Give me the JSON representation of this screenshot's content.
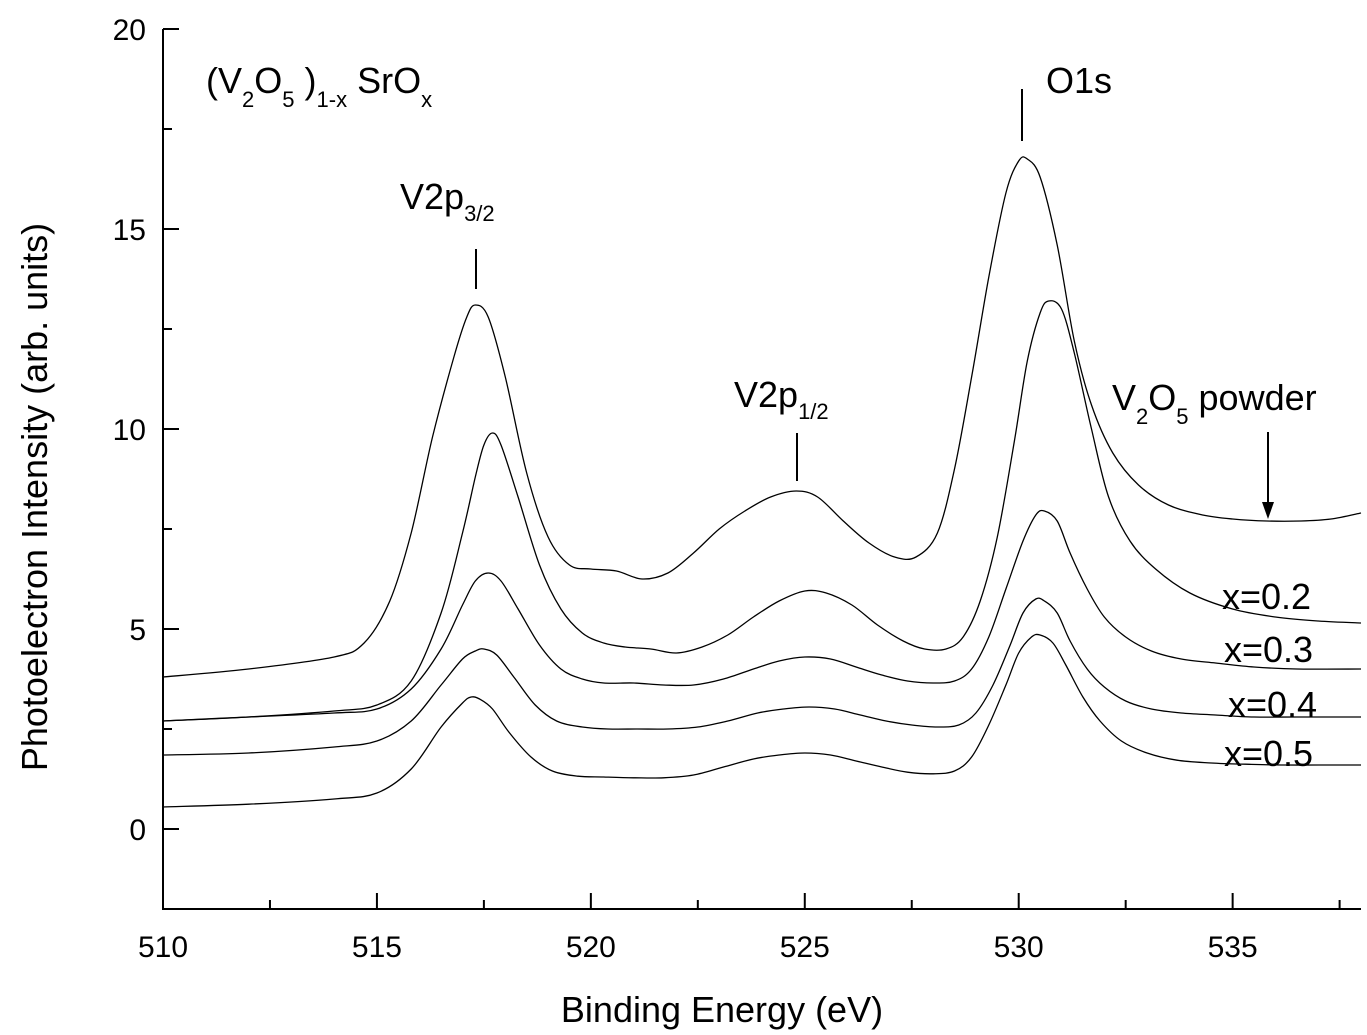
{
  "chart_data": {
    "type": "line",
    "title": "",
    "xlabel": "Binding Energy (eV)",
    "ylabel": "Photoelectron Intensity (arb. units)",
    "xlim": [
      510,
      538
    ],
    "ylim": [
      -2,
      20
    ],
    "x_ticks": [
      510,
      515,
      520,
      525,
      530,
      535
    ],
    "y_ticks": [
      0,
      5,
      10,
      15,
      20
    ],
    "grid": false,
    "series": [
      {
        "name": "V2O5 powder",
        "x": [
          510,
          512,
          514,
          514.7,
          515.3,
          515.8,
          516.3,
          516.8,
          517.1,
          517.3,
          517.6,
          518,
          518.5,
          519,
          519.5,
          520,
          520.6,
          521.2,
          521.8,
          522.4,
          523,
          523.6,
          524.2,
          524.8,
          525.3,
          525.9,
          526.5,
          527.1,
          527.6,
          528.1,
          528.5,
          528.9,
          529.3,
          529.7,
          530.0,
          530.2,
          530.5,
          530.9,
          531.3,
          531.7,
          532.2,
          532.8,
          533.5,
          534.3,
          535,
          535.8,
          536.6,
          537.3,
          538
        ],
        "y": [
          3.8,
          4.0,
          4.3,
          4.65,
          5.7,
          7.4,
          9.8,
          11.8,
          12.8,
          13.1,
          12.8,
          11.3,
          8.9,
          7.3,
          6.6,
          6.5,
          6.45,
          6.25,
          6.4,
          6.9,
          7.5,
          7.95,
          8.3,
          8.45,
          8.3,
          7.7,
          7.15,
          6.8,
          6.8,
          7.4,
          9.0,
          11.3,
          13.8,
          15.9,
          16.7,
          16.75,
          16.3,
          14.6,
          12.2,
          10.6,
          9.4,
          8.6,
          8.1,
          7.85,
          7.75,
          7.7,
          7.7,
          7.75,
          7.9
        ]
      },
      {
        "name": "x=0.2",
        "x": [
          510,
          512,
          514,
          515,
          515.8,
          516.5,
          517,
          517.3,
          517.5,
          517.7,
          517.9,
          518.3,
          518.8,
          519.3,
          519.8,
          520.3,
          520.8,
          521.4,
          522,
          522.6,
          523.2,
          523.8,
          524.4,
          525,
          525.5,
          526.1,
          526.7,
          527.3,
          527.8,
          528.3,
          528.7,
          529.1,
          529.5,
          529.9,
          530.2,
          530.5,
          530.7,
          531.0,
          531.3,
          531.7,
          532.1,
          532.6,
          533.2,
          534,
          535,
          536,
          537,
          538
        ],
        "y": [
          2.7,
          2.8,
          2.95,
          3.1,
          3.7,
          5.4,
          7.4,
          8.8,
          9.6,
          9.9,
          9.6,
          8.3,
          6.6,
          5.5,
          4.9,
          4.65,
          4.55,
          4.5,
          4.4,
          4.55,
          4.85,
          5.3,
          5.7,
          5.95,
          5.9,
          5.6,
          5.1,
          4.7,
          4.5,
          4.5,
          4.8,
          5.7,
          7.3,
          9.7,
          11.7,
          12.9,
          13.2,
          13.0,
          11.9,
          10.0,
          8.3,
          7.2,
          6.5,
          5.9,
          5.5,
          5.3,
          5.2,
          5.15
        ]
      },
      {
        "name": "x=0.3",
        "x": [
          510,
          512,
          514,
          515,
          515.8,
          516.5,
          517,
          517.3,
          517.6,
          517.9,
          518.3,
          518.8,
          519.3,
          519.8,
          520.3,
          521,
          521.7,
          522.4,
          523.1,
          523.8,
          524.4,
          525,
          525.6,
          526.2,
          526.8,
          527.4,
          528,
          528.5,
          528.9,
          529.3,
          529.7,
          530.1,
          530.4,
          530.6,
          530.9,
          531.2,
          531.6,
          532,
          532.5,
          533.1,
          533.8,
          534.6,
          535.5,
          536.5,
          538
        ],
        "y": [
          2.7,
          2.8,
          2.9,
          3.0,
          3.5,
          4.5,
          5.6,
          6.2,
          6.4,
          6.2,
          5.5,
          4.6,
          4.0,
          3.75,
          3.65,
          3.65,
          3.6,
          3.6,
          3.75,
          4.0,
          4.2,
          4.3,
          4.25,
          4.05,
          3.85,
          3.7,
          3.65,
          3.7,
          4.0,
          4.8,
          6.0,
          7.2,
          7.85,
          7.95,
          7.7,
          6.9,
          6.0,
          5.3,
          4.8,
          4.45,
          4.25,
          4.15,
          4.05,
          4.0,
          4.0
        ]
      },
      {
        "name": "x=0.4",
        "x": [
          510,
          512,
          514,
          515,
          515.8,
          516.5,
          517,
          517.3,
          517.5,
          517.8,
          518.2,
          518.7,
          519.2,
          519.8,
          520.4,
          521.1,
          521.8,
          522.5,
          523.2,
          523.9,
          524.5,
          525.1,
          525.7,
          526.3,
          526.9,
          527.5,
          528.1,
          528.6,
          529,
          529.4,
          529.8,
          530.1,
          530.4,
          530.6,
          530.9,
          531.2,
          531.6,
          532,
          532.5,
          533.1,
          533.8,
          534.6,
          535.5,
          536.5,
          538
        ],
        "y": [
          1.85,
          1.9,
          2.05,
          2.2,
          2.7,
          3.6,
          4.25,
          4.45,
          4.5,
          4.35,
          3.8,
          3.1,
          2.7,
          2.55,
          2.5,
          2.5,
          2.5,
          2.55,
          2.7,
          2.9,
          3.0,
          3.05,
          3.0,
          2.85,
          2.7,
          2.6,
          2.55,
          2.6,
          2.9,
          3.6,
          4.6,
          5.4,
          5.75,
          5.7,
          5.4,
          4.7,
          4.0,
          3.55,
          3.2,
          3.0,
          2.9,
          2.85,
          2.8,
          2.8,
          2.8
        ]
      },
      {
        "name": "x=0.5",
        "x": [
          510,
          512,
          514,
          515,
          515.8,
          516.5,
          517,
          517.2,
          517.4,
          517.7,
          518.1,
          518.6,
          519.1,
          519.7,
          520.3,
          521,
          521.7,
          522.4,
          523.1,
          523.8,
          524.4,
          525,
          525.6,
          526.2,
          526.8,
          527.4,
          528,
          528.5,
          528.9,
          529.3,
          529.7,
          530.0,
          530.3,
          530.5,
          530.8,
          531.1,
          531.5,
          531.9,
          532.4,
          533,
          533.7,
          534.5,
          535.3,
          536.2,
          537,
          538
        ],
        "y": [
          0.55,
          0.62,
          0.75,
          0.9,
          1.5,
          2.55,
          3.15,
          3.3,
          3.25,
          3.0,
          2.4,
          1.8,
          1.45,
          1.32,
          1.3,
          1.28,
          1.28,
          1.35,
          1.55,
          1.75,
          1.85,
          1.9,
          1.85,
          1.7,
          1.55,
          1.42,
          1.38,
          1.45,
          1.8,
          2.6,
          3.6,
          4.4,
          4.8,
          4.85,
          4.65,
          4.1,
          3.3,
          2.7,
          2.2,
          1.9,
          1.72,
          1.65,
          1.62,
          1.6,
          1.6,
          1.6
        ]
      }
    ],
    "annotations": {
      "composition": {
        "paren_open": "(V",
        "sub_2": "2",
        "o": "O",
        "sub_5": "5",
        "paren_close": " )",
        "sub_1x": "1-x",
        "sro": " SrO",
        "sub_x": "x"
      },
      "v2p32": {
        "main": "V2p",
        "sub": "3/2",
        "x": 517.3,
        "y": 13.1
      },
      "v2p12": {
        "main": "V2p",
        "sub": "1/2",
        "x": 524.8,
        "y": 8.45
      },
      "o1s": {
        "main": "O1s",
        "x": 530.1,
        "y": 16.75
      },
      "powder": {
        "v": "V",
        "sub_2": "2",
        "o": "O",
        "sub_5": "5",
        "rest": " powder",
        "x": 535.8,
        "y": 7.75
      },
      "x02": {
        "text": "x=0.2"
      },
      "x03": {
        "text": "x=0.3"
      },
      "x04": {
        "text": "x=0.4"
      },
      "x05": {
        "text": "x=0.5"
      }
    }
  }
}
